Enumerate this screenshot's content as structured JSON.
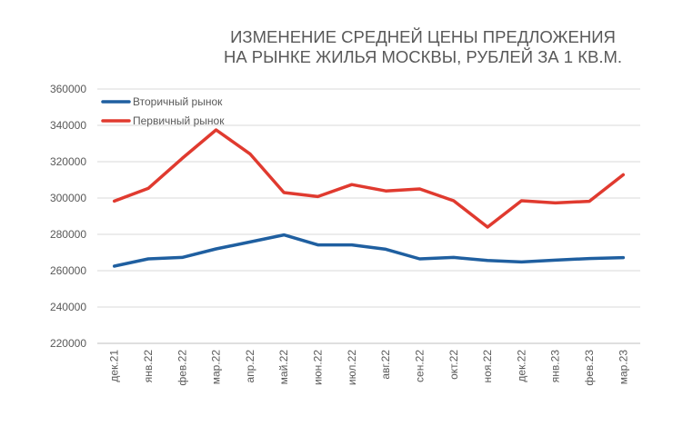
{
  "chart_data": {
    "type": "line",
    "title_lines": [
      "ИЗМЕНЕНИЕ СРЕДНЕЙ ЦЕНЫ ПРЕДЛОЖЕНИЯ",
      "НА РЫНКЕ ЖИЛЬЯ МОСКВЫ, РУБЛЕЙ ЗА 1 КВ.М."
    ],
    "categories": [
      "дек.21",
      "янв.22",
      "фев.22",
      "мар.22",
      "апр.22",
      "май.22",
      "июн.22",
      "июл.22",
      "авг.22",
      "сен.22",
      "окт.22",
      "ноя.22",
      "дек.22",
      "янв.23",
      "фев.23",
      "мар.23"
    ],
    "ylim": [
      220000,
      360000
    ],
    "yticks": [
      220000,
      240000,
      260000,
      280000,
      300000,
      320000,
      340000,
      360000
    ],
    "grid": true,
    "legend_position": "top-left",
    "series": [
      {
        "name": "Вторичный рынок",
        "color": "#1f5fa0",
        "values": [
          262500,
          266500,
          267300,
          272000,
          275800,
          279700,
          274200,
          274200,
          271800,
          266500,
          267300,
          265600,
          264800,
          265800,
          266700,
          267200
        ]
      },
      {
        "name": "Первичный рынок",
        "color": "#e03a2f",
        "values": [
          298300,
          305300,
          321800,
          337500,
          324300,
          303000,
          300800,
          307400,
          303900,
          305000,
          298500,
          284000,
          298500,
          297300,
          298200,
          312800
        ]
      }
    ]
  }
}
